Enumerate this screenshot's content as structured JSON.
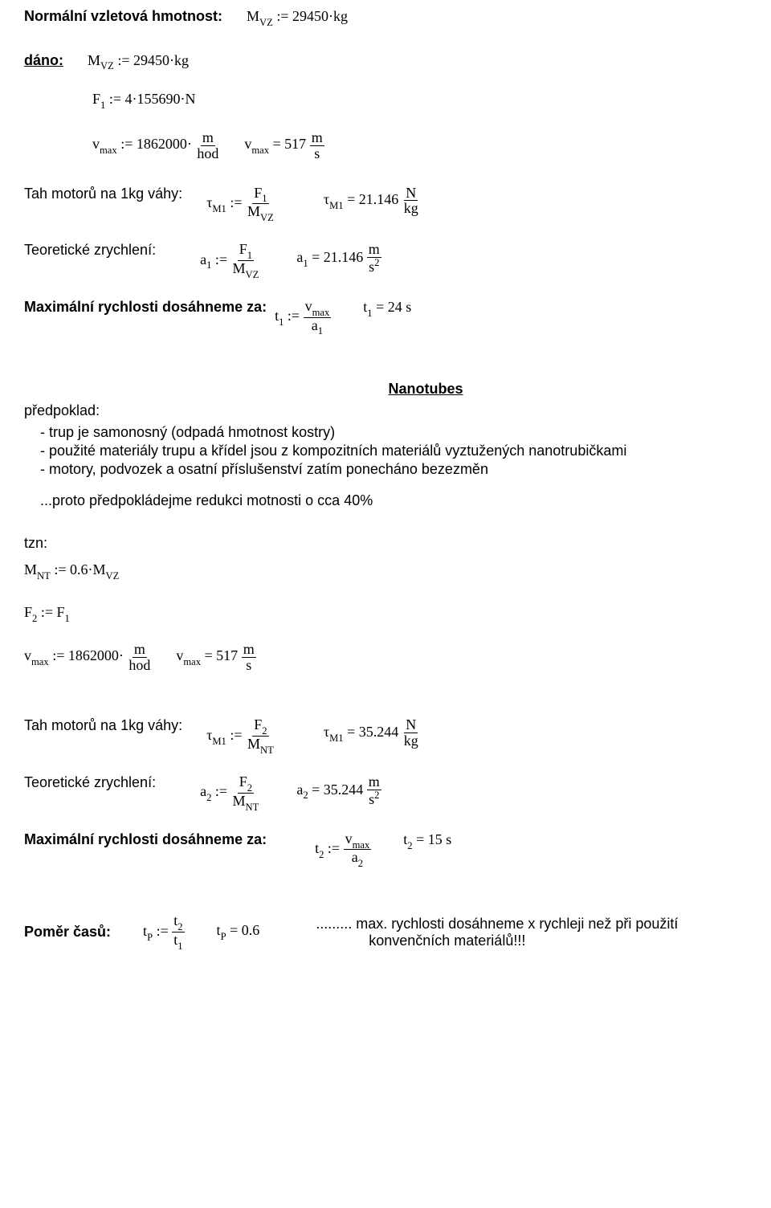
{
  "p1": {
    "label": "Normální vzletová hmotnost:",
    "eq": "M<sub>VZ</sub> := 29450·kg"
  },
  "dano": {
    "label": "dáno:",
    "l1": "M<sub>VZ</sub> := 29450·kg",
    "l2": "F<sub>1</sub> := 4·155690·N",
    "l3a": {
      "lhs": "v<sub>max</sub> := 1862000·",
      "num": "m",
      "den": "hod"
    },
    "l3b": {
      "lhs": "v<sub>max</sub> = 517 ",
      "num": "m",
      "den": "s"
    }
  },
  "tah1": {
    "label": "Tah motorů na 1kg váhy:",
    "lhs": "τ<sub>M1</sub> := ",
    "num": "F<sub>1</sub>",
    "den": "M<sub>VZ</sub>",
    "rhs_l": "τ<sub>M1</sub> = 21.146 ",
    "rnum": "N",
    "rden": "kg"
  },
  "teor1": {
    "label": "Teoretické zrychlení:",
    "lhs": "a<sub>1</sub> := ",
    "num": "F<sub>1</sub>",
    "den": "M<sub>VZ</sub>",
    "rhs_l": "a<sub>1</sub> = 21.146 ",
    "rnum": "m",
    "rden": "s<sup>2</sup>"
  },
  "max1": {
    "label": "Maximální rychlosti dosáhneme za:",
    "lhs": "t<sub>1</sub> := ",
    "num": "v<sub>max</sub>",
    "den": "a<sub>1</sub>",
    "rhs": "t<sub>1</sub> = 24 s"
  },
  "nanotubes": "Nanotubes",
  "predpoklad": {
    "label": "předpoklad:",
    "b1": "- trup je samonosný (odpadá hmotnost kostry)",
    "b2": "- použité materiály trupu a křídel jsou z kompozitních materiálů vyztužených nanotrubičkami",
    "b3": "- motory, podvozek a osatní příslušenství zatím ponecháno bezezměn",
    "note": "...proto předpokládejme redukci motnosti o cca 40%"
  },
  "tzn": {
    "label": "tzn:",
    "eq": "M<sub>NT</sub> := 0.6·M<sub>VZ</sub>"
  },
  "F2": "F<sub>2</sub> := F<sub>1</sub>",
  "vmax2": {
    "a": {
      "lhs": "v<sub>max</sub> := 1862000·",
      "num": "m",
      "den": "hod"
    },
    "b": {
      "lhs": "v<sub>max</sub> = 517 ",
      "num": "m",
      "den": "s"
    }
  },
  "tah2": {
    "label": "Tah motorů na 1kg váhy:",
    "lhs": "τ<sub>M1</sub> := ",
    "num": "F<sub>2</sub>",
    "den": "M<sub>NT</sub>",
    "rhs_l": "τ<sub>M1</sub> = 35.244 ",
    "rnum": "N",
    "rden": "kg"
  },
  "teor2": {
    "label": "Teoretické zrychlení:",
    "lhs": "a<sub>2</sub> := ",
    "num": "F<sub>2</sub>",
    "den": "M<sub>NT</sub>",
    "rhs_l": "a<sub>2</sub> = 35.244 ",
    "rnum": "m",
    "rden": "s<sup>2</sup>"
  },
  "max2": {
    "label": "Maximální rychlosti dosáhneme za:",
    "lhs": "t<sub>2</sub> := ",
    "num": "v<sub>max</sub>",
    "den": "a<sub>2</sub>",
    "rhs": "t<sub>2</sub> = 15 s"
  },
  "pomer": {
    "label": "Poměr časů:",
    "lhs": "t<sub>P</sub> := ",
    "num": "t<sub>2</sub>",
    "den": "t<sub>1</sub>",
    "mid": "t<sub>P</sub> = 0.6",
    "note1": "......... max. rychlosti dosáhneme x rychleji než při použití",
    "note2": "konvenčních materiálů!!!"
  }
}
